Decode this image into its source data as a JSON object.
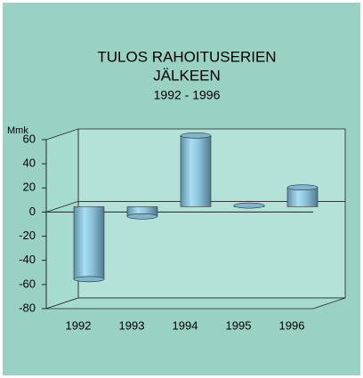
{
  "chart_data": {
    "type": "bar3d",
    "title": [
      "TULOS RAHOITUSERIEN",
      "JÄLKEEN"
    ],
    "subtitle": "1992 - 1996",
    "y_label": "Mmk",
    "categories": [
      "1992",
      "1993",
      "1994",
      "1995",
      "1996"
    ],
    "values": [
      -60,
      -8,
      59,
      1,
      16
    ],
    "color": "#8fcfe8",
    "ylim": [
      -80,
      60
    ],
    "yticks": [
      -80,
      -60,
      -40,
      -20,
      0,
      20,
      40,
      60
    ],
    "grid": false
  }
}
